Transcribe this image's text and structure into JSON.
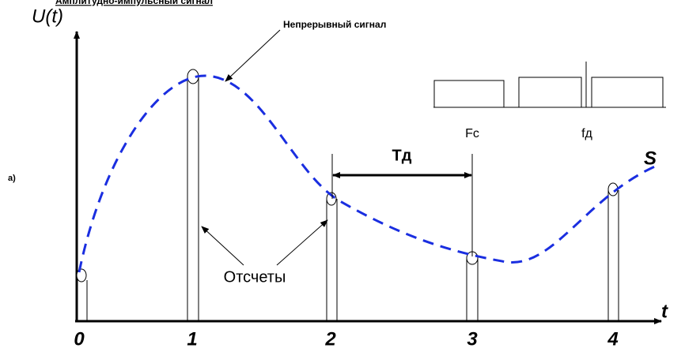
{
  "title": "Амплитудно-импульсный сигнал",
  "axis_y_label": "U(t)",
  "axis_x_label": "t",
  "curve_label": "Непрерывный сигнал",
  "samples_label": "Отсчеты",
  "period_label": "Тд",
  "signal_label": "S",
  "figure_label": "а)",
  "spectrum_labels": [
    "Fc",
    "fд"
  ],
  "x_ticks": [
    "0",
    "1",
    "2",
    "3",
    "4"
  ]
}
